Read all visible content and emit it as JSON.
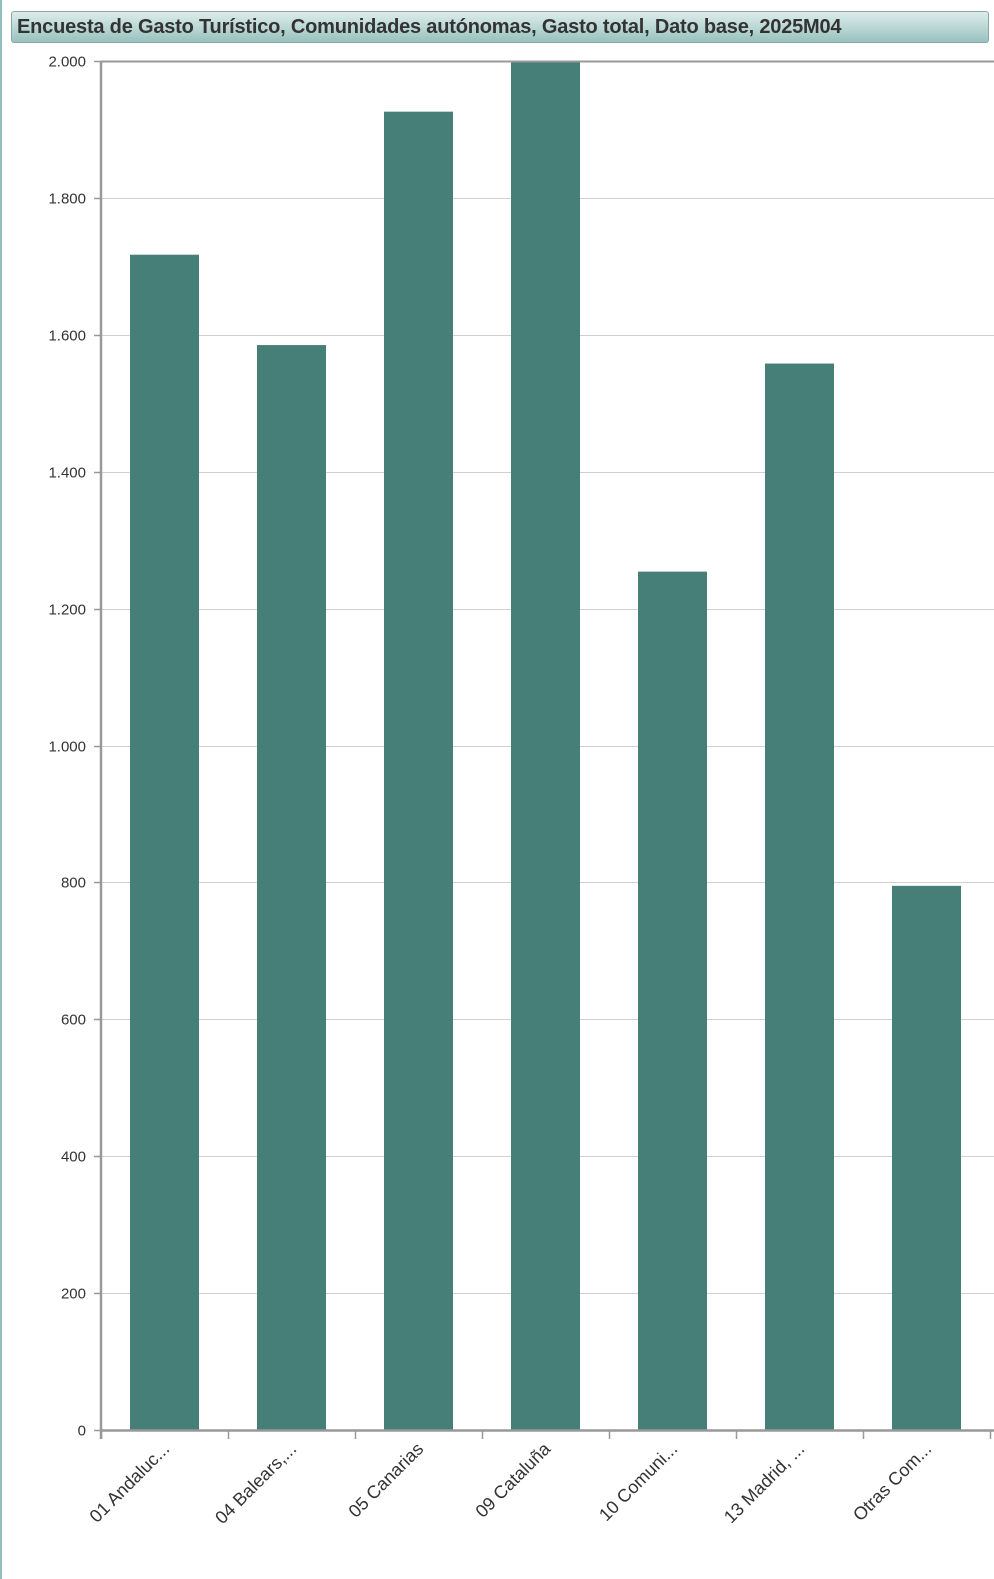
{
  "header": {
    "title": "Encuesta de Gasto Turístico, Comunidades autónomas, Gasto total, Dato base, 2025M04"
  },
  "colors": {
    "bar": "#467f77",
    "grid": "#d0d0d0",
    "axis": "#999999",
    "title_bar": "#b8d6d3"
  },
  "chart_data": {
    "type": "bar",
    "title": "Encuesta de Gasto Turístico, Comunidades autónomas, Gasto total, Dato base, 2025M04",
    "xlabel": "",
    "ylabel": "",
    "categories": [
      "01 Andaluc...",
      "04 Balears,...",
      "05 Canarias",
      "09 Cataluña",
      "10 Comuni...",
      "13 Madrid, ...",
      "Otras Com..."
    ],
    "values": [
      1717,
      1585,
      1926,
      1998,
      1254,
      1558,
      795
    ],
    "ylim": [
      0,
      2000
    ],
    "yticks": [
      0,
      200,
      400,
      600,
      800,
      1000,
      1200,
      1400,
      1600,
      1800,
      2000
    ],
    "ytick_labels": [
      "0",
      "200",
      "400",
      "600",
      "800",
      "1.000",
      "1.200",
      "1.400",
      "1.600",
      "1.800",
      "2.000"
    ],
    "grid": true,
    "legend": "none"
  }
}
